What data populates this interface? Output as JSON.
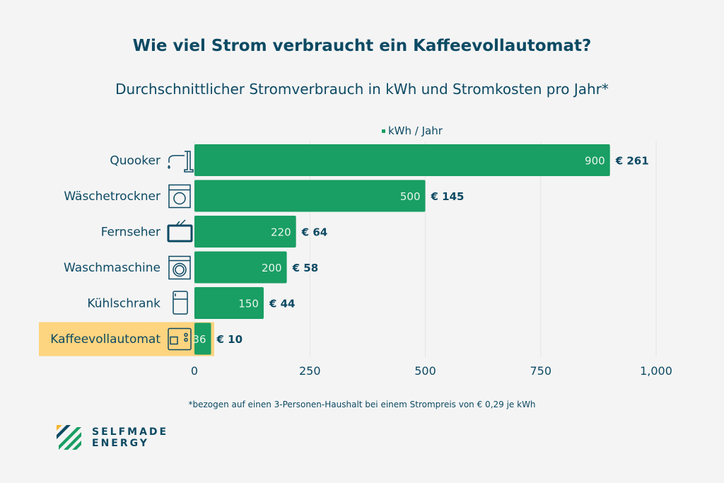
{
  "chart_data": {
    "type": "bar",
    "orientation": "horizontal",
    "title": "Wie viel Strom verbraucht ein Kaffeevollautomat?",
    "subtitle": "Durchschnittlicher Stromverbrauch in kWh und Stromkosten pro Jahr*",
    "legend": "kWh / Jahr",
    "categories": [
      "Quooker",
      "Wäschetrockner",
      "Fernseher",
      "Waschmaschine",
      "Kühlschrank",
      "Kaffeevollautomat"
    ],
    "values": [
      900,
      500,
      220,
      200,
      150,
      36
    ],
    "cost_labels": [
      "€ 261",
      "€ 145",
      "€ 64",
      "€ 58",
      "€ 44",
      "€ 10"
    ],
    "icons": [
      "faucet-icon",
      "dryer-icon",
      "tv-icon",
      "washing-machine-icon",
      "fridge-icon",
      "coffee-machine-icon"
    ],
    "highlight": "Kaffeevollautomat",
    "xlim": [
      0,
      1000
    ],
    "xticks": [
      0,
      250,
      500,
      750,
      1000
    ],
    "xtick_labels": [
      "0",
      "250",
      "500",
      "750",
      "1,000"
    ],
    "grid": true,
    "colors": {
      "bar": "#199e63",
      "highlight": "#fdd47f",
      "text": "#0d4a63"
    }
  },
  "footnote": "*bezogen auf einen 3-Personen-Haushalt bei einem Strompreis von € 0,29 je kWh",
  "logo": {
    "line1": "SELFMADE",
    "line2": "ENERGY"
  }
}
